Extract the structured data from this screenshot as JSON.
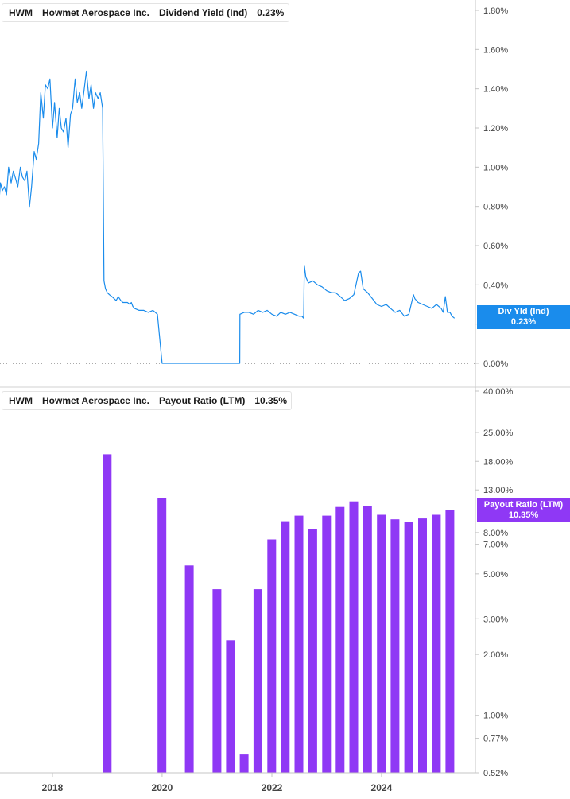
{
  "chart_data": [
    {
      "type": "line",
      "ticker": "HWM",
      "company": "Howmet Aerospace Inc.",
      "metric": "Dividend Yield (Ind)",
      "current_value": "0.23%",
      "tag_label": "Div Yld (Ind)",
      "color": "#1a8cec",
      "scale": "linear",
      "ylim": [
        0,
        1.8
      ],
      "y_ticks": [
        "0.00%",
        "0.20%",
        "0.40%",
        "0.60%",
        "0.80%",
        "1.00%",
        "1.20%",
        "1.40%",
        "1.60%",
        "1.80%"
      ],
      "grid": false,
      "x": [
        "2016-12-31",
        "2017-01-10",
        "2017-01-20",
        "2017-02-01",
        "2017-02-15",
        "2017-03-01",
        "2017-03-15",
        "2017-04-01",
        "2017-04-15",
        "2017-05-01",
        "2017-05-15",
        "2017-06-01",
        "2017-06-15",
        "2017-07-01",
        "2017-07-15",
        "2017-08-01",
        "2017-08-15",
        "2017-09-01",
        "2017-09-15",
        "2017-10-01",
        "2017-10-15",
        "2017-11-01",
        "2017-11-15",
        "2017-12-01",
        "2017-12-15",
        "2018-01-01",
        "2018-01-15",
        "2018-02-01",
        "2018-02-15",
        "2018-03-01",
        "2018-03-15",
        "2018-04-01",
        "2018-04-15",
        "2018-05-01",
        "2018-05-15",
        "2018-06-01",
        "2018-06-15",
        "2018-07-01",
        "2018-07-15",
        "2018-08-01",
        "2018-08-15",
        "2018-09-01",
        "2018-09-15",
        "2018-10-01",
        "2018-10-15",
        "2018-11-01",
        "2018-11-15",
        "2018-12-01",
        "2018-12-10",
        "2018-12-20",
        "2019-01-01",
        "2019-01-15",
        "2019-02-01",
        "2019-02-15",
        "2019-03-01",
        "2019-03-15",
        "2019-04-01",
        "2019-04-15",
        "2019-05-01",
        "2019-05-15",
        "2019-06-01",
        "2019-06-10",
        "2019-06-20",
        "2019-07-01",
        "2019-08-01",
        "2019-09-01",
        "2019-10-01",
        "2019-11-01",
        "2019-12-01",
        "2020-01-01",
        "2020-01-20",
        "2020-02-05",
        "2020-02-15",
        "2020-02-16",
        "2020-04-01",
        "2021-06-01",
        "2021-06-02",
        "2021-07-01",
        "2021-08-01",
        "2021-09-01",
        "2021-10-01",
        "2021-11-01",
        "2021-12-01",
        "2022-01-01",
        "2022-02-01",
        "2022-03-01",
        "2022-04-01",
        "2022-05-01",
        "2022-06-01",
        "2022-07-01",
        "2022-07-20",
        "2022-08-01",
        "2022-08-05",
        "2022-08-15",
        "2022-09-01",
        "2022-10-01",
        "2022-11-01",
        "2022-12-01",
        "2023-01-01",
        "2023-02-01",
        "2023-03-01",
        "2023-04-01",
        "2023-05-01",
        "2023-06-01",
        "2023-07-01",
        "2023-08-01",
        "2023-08-15",
        "2023-09-01",
        "2023-10-01",
        "2023-11-01",
        "2023-12-01",
        "2024-01-01",
        "2024-02-01",
        "2024-03-01",
        "2024-04-01",
        "2024-05-01",
        "2024-06-01",
        "2024-07-01",
        "2024-08-01",
        "2024-08-10",
        "2024-09-01",
        "2024-10-01",
        "2024-11-01",
        "2024-12-01",
        "2025-01-01",
        "2025-02-01",
        "2025-02-15",
        "2025-03-01",
        "2025-03-15",
        "2025-04-01",
        "2025-04-15",
        "2025-05-01"
      ],
      "values": [
        1.15,
        0.82,
        0.92,
        0.88,
        0.9,
        0.86,
        1.0,
        0.92,
        0.98,
        0.94,
        0.9,
        1.0,
        0.95,
        0.93,
        0.98,
        0.8,
        0.9,
        1.08,
        1.04,
        1.12,
        1.38,
        1.25,
        1.42,
        1.4,
        1.45,
        1.2,
        1.33,
        1.15,
        1.3,
        1.2,
        1.18,
        1.25,
        1.1,
        1.27,
        1.3,
        1.45,
        1.33,
        1.38,
        1.3,
        1.4,
        1.49,
        1.35,
        1.42,
        1.3,
        1.38,
        1.35,
        1.38,
        1.3,
        0.42,
        0.38,
        0.36,
        0.35,
        0.34,
        0.33,
        0.32,
        0.34,
        0.32,
        0.31,
        0.31,
        0.31,
        0.3,
        0.31,
        0.29,
        0.28,
        0.27,
        0.27,
        0.26,
        0.27,
        0.25,
        0.0,
        0.0,
        0.0,
        0.0,
        0.0,
        0.0,
        0.0,
        0.25,
        0.26,
        0.26,
        0.25,
        0.27,
        0.26,
        0.27,
        0.25,
        0.24,
        0.26,
        0.25,
        0.26,
        0.25,
        0.24,
        0.24,
        0.23,
        0.5,
        0.44,
        0.41,
        0.42,
        0.4,
        0.39,
        0.37,
        0.36,
        0.36,
        0.34,
        0.32,
        0.33,
        0.35,
        0.46,
        0.47,
        0.38,
        0.36,
        0.33,
        0.3,
        0.29,
        0.3,
        0.28,
        0.26,
        0.27,
        0.24,
        0.25,
        0.35,
        0.33,
        0.31,
        0.3,
        0.29,
        0.28,
        0.3,
        0.28,
        0.26,
        0.34,
        0.26,
        0.26,
        0.24,
        0.23
      ]
    },
    {
      "type": "bar",
      "ticker": "HWM",
      "company": "Howmet Aerospace Inc.",
      "metric": "Payout Ratio (LTM)",
      "current_value": "10.35%",
      "tag_label": "Payout Ratio (LTM)",
      "color": "#8f38f5",
      "scale": "log",
      "ylim": [
        0.52,
        40
      ],
      "y_ticks": [
        "0.52%",
        "0.77%",
        "1.00%",
        "2.00%",
        "3.00%",
        "5.00%",
        "7.00%",
        "8.00%",
        "13.00%",
        "18.00%",
        "25.00%",
        "40.00%"
      ],
      "grid": false,
      "x": [
        "2018-12-31",
        "2019-12-31",
        "2020-06-30",
        "2020-12-31",
        "2021-03-31",
        "2021-06-30",
        "2021-09-30",
        "2021-12-31",
        "2022-03-31",
        "2022-06-30",
        "2022-09-30",
        "2022-12-31",
        "2023-03-31",
        "2023-06-30",
        "2023-09-30",
        "2023-12-31",
        "2024-03-31",
        "2024-06-30",
        "2024-09-30",
        "2024-12-31",
        "2025-03-31"
      ],
      "values": [
        19.5,
        11.8,
        5.5,
        4.2,
        2.35,
        0.64,
        4.2,
        7.4,
        9.1,
        9.7,
        8.3,
        9.7,
        10.7,
        11.4,
        10.8,
        9.8,
        9.3,
        9.0,
        9.4,
        9.8,
        10.35
      ]
    }
  ],
  "x_axis": {
    "labels": [
      "2018",
      "2020",
      "2022",
      "2024"
    ]
  },
  "legends": [
    {
      "ticker": "HWM",
      "company": "Howmet Aerospace Inc.",
      "metric": "Dividend Yield (Ind)",
      "value": "0.23%"
    },
    {
      "ticker": "HWM",
      "company": "Howmet Aerospace Inc.",
      "metric": "Payout Ratio (LTM)",
      "value": "10.35%"
    }
  ],
  "tags": [
    {
      "label": "Div Yld (Ind)",
      "value": "0.23%"
    },
    {
      "label": "Payout Ratio (LTM)",
      "value": "10.35%"
    }
  ],
  "colors": {
    "line": "#1a8cec",
    "bar": "#8f38f5",
    "axis": "#c4c4c4",
    "text": "#444444"
  }
}
